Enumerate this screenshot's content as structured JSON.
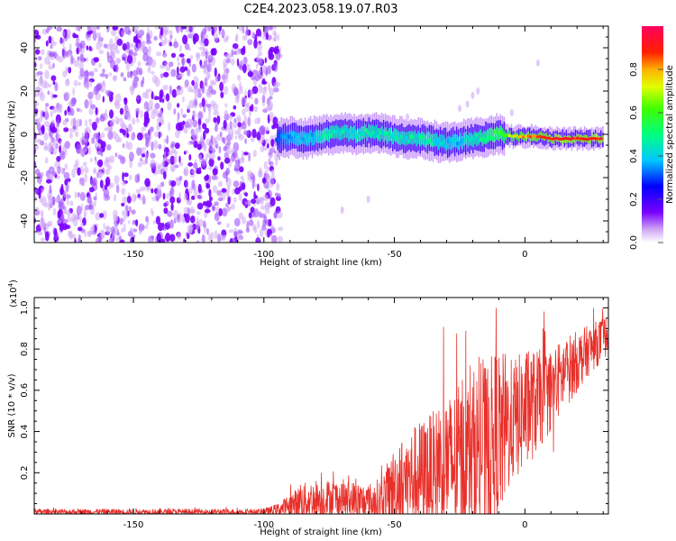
{
  "title": "C2E4.2023.058.19.07.R03",
  "chart_data": [
    {
      "type": "heatmap",
      "name": "spectrogram",
      "xlabel": "Height of straight line (km)",
      "ylabel": "Frequency (Hz)",
      "xlim": [
        -188,
        32
      ],
      "ylim": [
        -50,
        50
      ],
      "xticks": [
        -150,
        -100,
        -50,
        0
      ],
      "yticks": [
        -40,
        -20,
        0,
        20,
        40
      ],
      "noise_region_x": [
        -188,
        -95
      ],
      "signal_track": {
        "x": [
          -95,
          -90,
          -85,
          -80,
          -75,
          -70,
          -65,
          -60,
          -55,
          -50,
          -45,
          -40,
          -35,
          -30,
          -25,
          -20,
          -15,
          -10,
          -5,
          0,
          5,
          10,
          15,
          20,
          25,
          30
        ],
        "freq_hz": [
          -2,
          -1,
          -2,
          -1,
          0,
          1,
          0,
          1,
          0,
          -1,
          -2,
          -2,
          -3,
          -4,
          -3,
          -2,
          -1,
          0,
          -1,
          -1,
          -1,
          -2,
          -2,
          -2,
          -2,
          -2
        ],
        "amplitude": [
          0.3,
          0.35,
          0.4,
          0.4,
          0.45,
          0.45,
          0.45,
          0.45,
          0.45,
          0.45,
          0.45,
          0.45,
          0.45,
          0.4,
          0.4,
          0.45,
          0.5,
          0.55,
          0.7,
          0.8,
          0.85,
          0.9,
          0.9,
          0.9,
          0.9,
          0.9
        ]
      }
    },
    {
      "type": "colorbar",
      "name": "amplitude-colorbar",
      "label": "Normalized spectral amplitude",
      "range": [
        0,
        1
      ],
      "ticks": [
        "0.0",
        "0.2",
        "0.4",
        "0.6",
        "0.8"
      ]
    },
    {
      "type": "line",
      "name": "snr",
      "xlabel": "Height of straight line (km)",
      "ylabel": "SNR (10 * v/v)",
      "scale_label": "(x10",
      "scale_exponent": "4",
      "scale_close": ")",
      "xlim": [
        -188,
        32
      ],
      "ylim": [
        0,
        1.05
      ],
      "xticks": [
        -150,
        -100,
        -50,
        0
      ],
      "yticks": [
        "0.2",
        "0.4",
        "0.6",
        "0.8",
        "1.0"
      ],
      "series": [
        {
          "name": "SNR",
          "color": "#e8302a",
          "x": [
            -188,
            -100,
            -95,
            -90,
            -85,
            -80,
            -75,
            -70,
            -65,
            -60,
            -55,
            -50,
            -45,
            -40,
            -35,
            -30,
            -25,
            -20,
            -15,
            -10,
            -5,
            0,
            5,
            10,
            15,
            20,
            25,
            32
          ],
          "base": [
            0.01,
            0.01,
            0.02,
            0.04,
            0.06,
            0.07,
            0.07,
            0.07,
            0.06,
            0.05,
            0.06,
            0.13,
            0.16,
            0.19,
            0.2,
            0.24,
            0.26,
            0.3,
            0.3,
            0.38,
            0.45,
            0.5,
            0.55,
            0.6,
            0.68,
            0.74,
            0.8,
            0.87
          ],
          "amp": [
            0.015,
            0.015,
            0.03,
            0.06,
            0.09,
            0.1,
            0.1,
            0.1,
            0.1,
            0.1,
            0.12,
            0.2,
            0.24,
            0.27,
            0.3,
            0.33,
            0.37,
            0.4,
            0.42,
            0.45,
            0.3,
            0.3,
            0.25,
            0.2,
            0.18,
            0.15,
            0.12,
            0.1
          ],
          "spikes": [
            [
              -11,
              1.0
            ],
            [
              -16,
              0.75
            ],
            [
              -21,
              0.72
            ],
            [
              -24,
              0.65
            ],
            [
              -33,
              0.5
            ],
            [
              -38,
              0.4
            ],
            [
              -48,
              0.32
            ],
            [
              -52,
              0.22
            ],
            [
              -78,
              0.2
            ],
            [
              -86,
              0.14
            ],
            [
              -2,
              0.35
            ],
            [
              11,
              0.3
            ],
            [
              7,
              0.9
            ],
            [
              -30,
              0.5
            ],
            [
              -9,
              0.55
            ]
          ]
        }
      ]
    }
  ]
}
